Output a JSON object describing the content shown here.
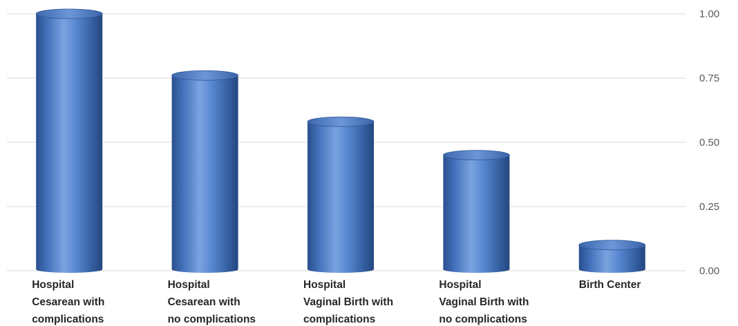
{
  "chart_data": {
    "type": "bar",
    "style": "3d-cylinder",
    "categories": [
      [
        "Hospital",
        "Cesarean with",
        "complications"
      ],
      [
        "Hospital",
        "Cesarean with",
        "no complications"
      ],
      [
        "Hospital",
        "Vaginal Birth with",
        "complications"
      ],
      [
        "Hospital",
        "Vaginal Birth with",
        "no complications"
      ],
      [
        "Birth Center"
      ]
    ],
    "series": [
      {
        "values": [
          1.0,
          0.76,
          0.58,
          0.45,
          0.1
        ],
        "color": "#4a7bc4"
      }
    ],
    "ylim": [
      0,
      1
    ],
    "yticks": [
      "0.00",
      "0.25",
      "0.50",
      "0.75",
      "1.00"
    ],
    "y_axis_side": "right",
    "grid": true
  }
}
